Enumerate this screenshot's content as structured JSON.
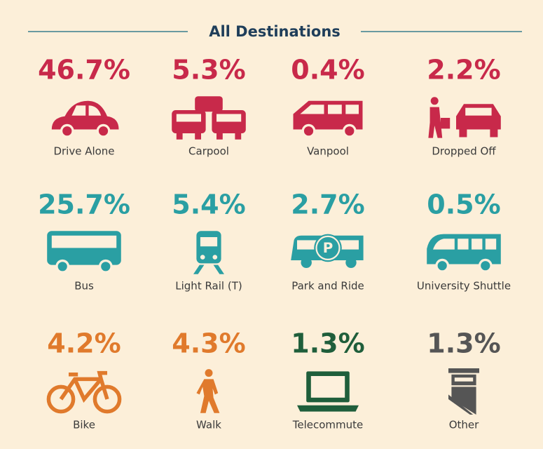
{
  "title": "All Destinations",
  "rows": [
    {
      "color": "#c8294a",
      "items": [
        {
          "value": "46.7%",
          "label": "Drive Alone"
        },
        {
          "value": "5.3%",
          "label": "Carpool"
        },
        {
          "value": "0.4%",
          "label": "Vanpool"
        },
        {
          "value": "2.2%",
          "label": "Dropped Off"
        }
      ]
    },
    {
      "color": "#2a9fa3",
      "items": [
        {
          "value": "25.7%",
          "label": "Bus"
        },
        {
          "value": "5.4%",
          "label": "Light Rail (T)"
        },
        {
          "value": "2.7%",
          "label": "Park and Ride"
        },
        {
          "value": "0.5%",
          "label": "University Shuttle"
        }
      ]
    },
    {
      "color": "#e07a2c",
      "items": [
        {
          "value": "4.2%",
          "label": "Bike"
        },
        {
          "value": "4.3%",
          "label": "Walk"
        },
        {
          "value": "1.3%",
          "label": "Telecommute",
          "color": "#1f5e3b"
        },
        {
          "value": "1.3%",
          "label": "Other",
          "color": "#555555"
        }
      ]
    }
  ]
}
